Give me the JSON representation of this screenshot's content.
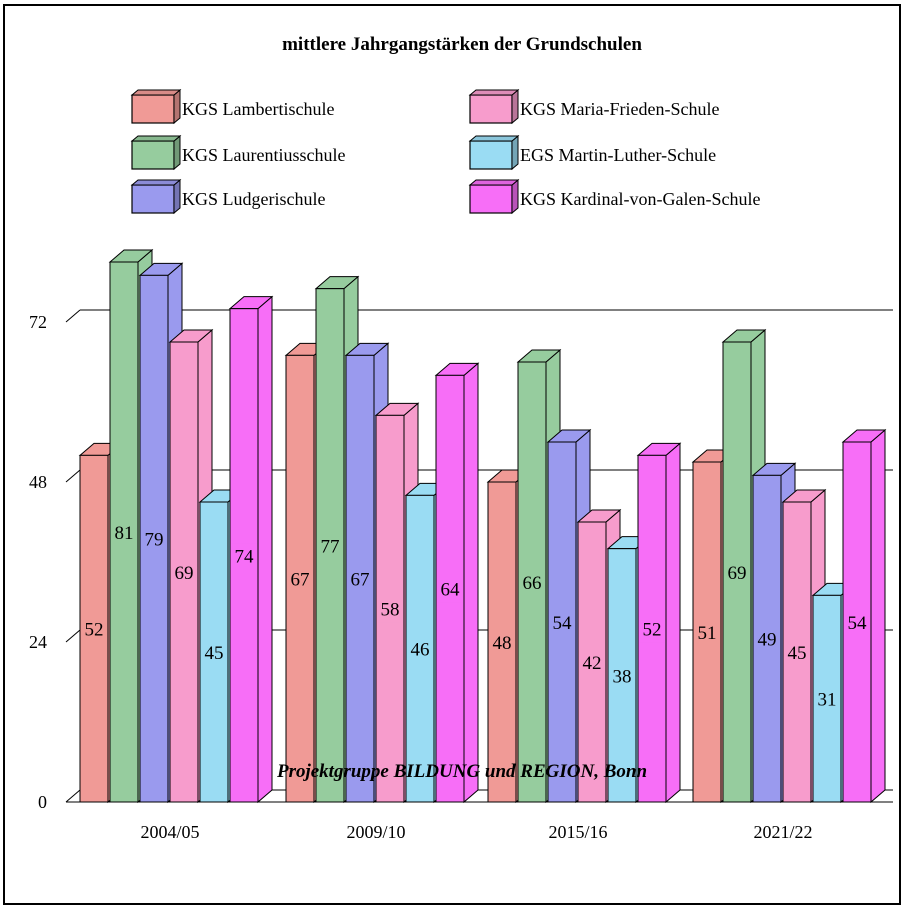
{
  "chart_data": {
    "type": "bar",
    "title": "mittlere Jahrgangstärken der Grundschulen",
    "footer": "Projektgruppe BILDUNG und REGION, Bonn",
    "categories": [
      "2004/05",
      "2009/10",
      "2015/16",
      "2021/22"
    ],
    "ylim": [
      0,
      72
    ],
    "yticks": [
      "0",
      "24",
      "48",
      "72"
    ],
    "grid": true,
    "legend_position": "top",
    "series": [
      {
        "name": "KGS Lambertischule",
        "color": "#f09a96",
        "values": [
          52,
          67,
          48,
          51
        ],
        "labels": [
          "52",
          "67",
          "48",
          "51"
        ]
      },
      {
        "name": "KGS Laurentiusschule",
        "color": "#96cc9e",
        "values": [
          81,
          77,
          66,
          69
        ],
        "labels": [
          "81",
          "77",
          "66",
          "69"
        ]
      },
      {
        "name": "KGS Ludgerischule",
        "color": "#9a9aee",
        "values": [
          79,
          67,
          54,
          49
        ],
        "labels": [
          "79",
          "67",
          "54",
          "49"
        ]
      },
      {
        "name": "KGS Maria-Frieden-Schule",
        "color": "#f79ccc",
        "values": [
          69,
          58,
          42,
          45
        ],
        "labels": [
          "69",
          "58",
          "42",
          "45"
        ]
      },
      {
        "name": "EGS Martin-Luther-Schule",
        "color": "#9adcf3",
        "values": [
          45,
          46,
          38,
          31
        ],
        "labels": [
          "45",
          "46",
          "38",
          "31"
        ]
      },
      {
        "name": "KGS Kardinal-von-Galen-Schule",
        "color": "#f76ef7",
        "values": [
          74,
          64,
          52,
          54
        ],
        "labels": [
          "74",
          "64",
          "52",
          "54"
        ]
      }
    ]
  }
}
